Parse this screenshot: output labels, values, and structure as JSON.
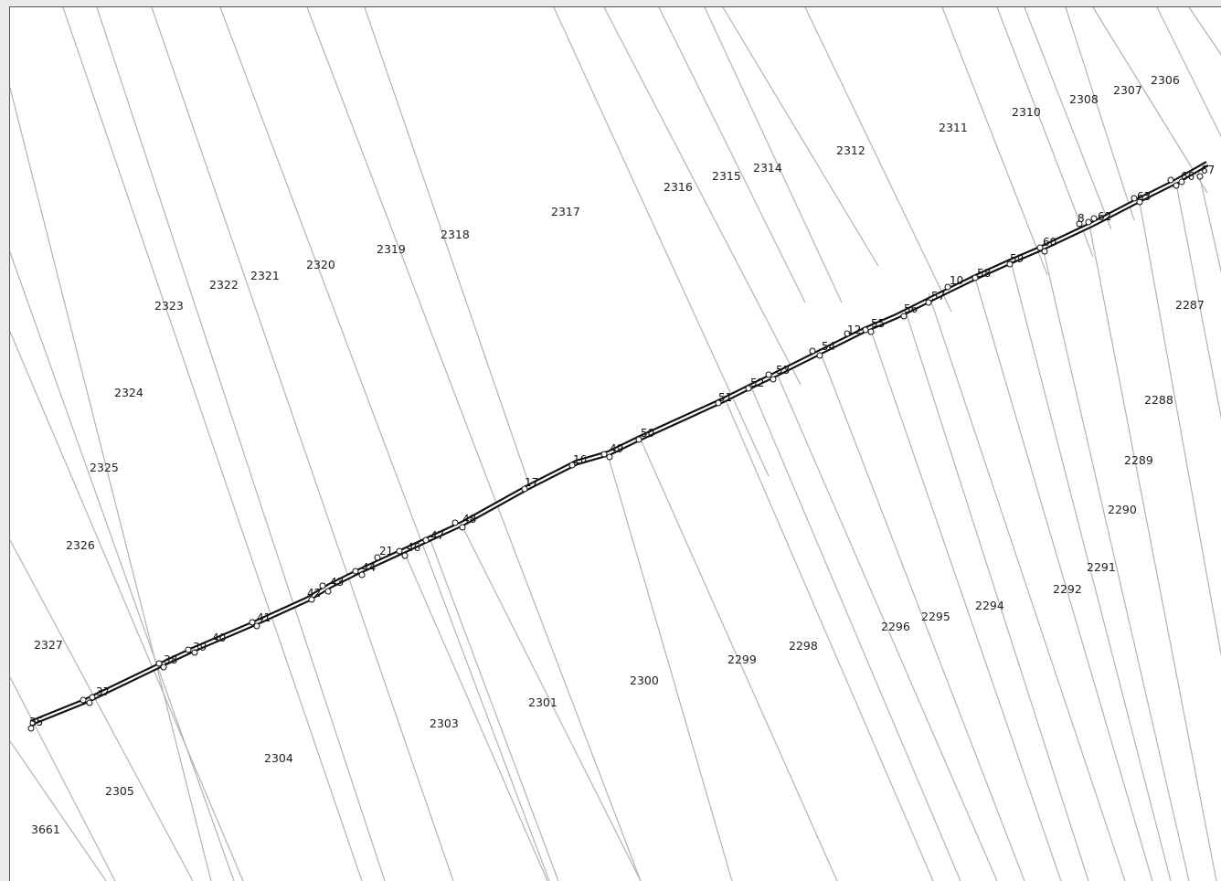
{
  "parcel_labels": [
    "2306",
    "2307",
    "2308",
    "2310",
    "2311",
    "2312",
    "2314",
    "2315",
    "2316",
    "2317",
    "2318",
    "2319",
    "2320",
    "2321",
    "2322",
    "2323",
    "2324",
    "2325",
    "2326",
    "2327",
    "3661",
    "2305",
    "2304",
    "2303",
    "2301",
    "2300",
    "2299",
    "2298",
    "2296",
    "2295",
    "2294",
    "2292",
    "2291",
    "2290",
    "2289",
    "2288",
    "2287"
  ],
  "point_labels": [
    "35",
    "37",
    "38",
    "39",
    "40",
    "41",
    "42",
    "43",
    "44",
    "21",
    "46",
    "47",
    "48",
    "17",
    "16",
    "49",
    "50",
    "51",
    "52",
    "53",
    "54",
    "12",
    "55",
    "56",
    "57",
    "10",
    "58",
    "59",
    "60",
    "8",
    "62",
    "63",
    "66",
    "67"
  ],
  "colors": {
    "parcel_line": "#b3b3b3",
    "road": "#111111",
    "background": "#ffffff"
  }
}
